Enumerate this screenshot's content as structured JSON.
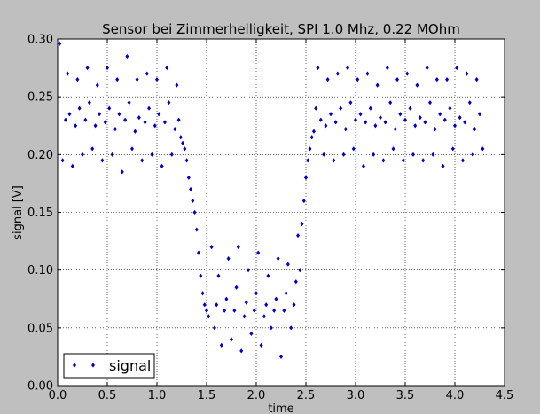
{
  "chart_data": {
    "type": "scatter",
    "title": "Sensor bei Zimmerhelligkeit, SPI 1.0 Mhz, 0.22 MOhm",
    "xlabel": "time",
    "ylabel": "signal [V]",
    "xlim": [
      0.0,
      4.5
    ],
    "ylim": [
      0.0,
      0.3
    ],
    "x_ticks": [
      "0.0",
      "0.5",
      "1.0",
      "1.5",
      "2.0",
      "2.5",
      "3.0",
      "3.5",
      "4.0",
      "4.5"
    ],
    "y_ticks": [
      "0.00",
      "0.05",
      "0.10",
      "0.15",
      "0.20",
      "0.25",
      "0.30"
    ],
    "grid": true,
    "legend_position": "lower-left",
    "series": [
      {
        "name": "signal",
        "color": "#0000cc",
        "marker": "diamond",
        "x": [
          0.02,
          0.05,
          0.08,
          0.1,
          0.12,
          0.15,
          0.18,
          0.2,
          0.22,
          0.25,
          0.28,
          0.3,
          0.32,
          0.35,
          0.38,
          0.4,
          0.42,
          0.45,
          0.48,
          0.5,
          0.52,
          0.55,
          0.58,
          0.6,
          0.62,
          0.65,
          0.68,
          0.7,
          0.72,
          0.75,
          0.78,
          0.8,
          0.82,
          0.85,
          0.88,
          0.9,
          0.92,
          0.95,
          0.98,
          1.0,
          1.02,
          1.05,
          1.08,
          1.1,
          1.12,
          1.15,
          1.18,
          1.2,
          1.22,
          1.24,
          1.26,
          1.28,
          1.3,
          1.32,
          1.34,
          1.36,
          1.38,
          1.4,
          1.42,
          1.44,
          1.46,
          1.48,
          1.5,
          1.52,
          1.55,
          1.58,
          1.6,
          1.62,
          1.65,
          1.68,
          1.7,
          1.72,
          1.75,
          1.78,
          1.8,
          1.82,
          1.85,
          1.88,
          1.9,
          1.92,
          1.95,
          1.98,
          2.0,
          2.02,
          2.05,
          2.08,
          2.1,
          2.12,
          2.15,
          2.18,
          2.2,
          2.22,
          2.25,
          2.28,
          2.3,
          2.32,
          2.35,
          2.38,
          2.4,
          2.42,
          2.44,
          2.46,
          2.48,
          2.5,
          2.52,
          2.54,
          2.56,
          2.58,
          2.6,
          2.62,
          2.65,
          2.68,
          2.7,
          2.72,
          2.75,
          2.78,
          2.8,
          2.82,
          2.85,
          2.88,
          2.9,
          2.92,
          2.95,
          2.98,
          3.0,
          3.02,
          3.05,
          3.08,
          3.1,
          3.12,
          3.15,
          3.18,
          3.2,
          3.22,
          3.25,
          3.28,
          3.3,
          3.32,
          3.35,
          3.38,
          3.4,
          3.42,
          3.45,
          3.48,
          3.5,
          3.52,
          3.55,
          3.58,
          3.6,
          3.62,
          3.65,
          3.68,
          3.7,
          3.72,
          3.75,
          3.78,
          3.8,
          3.82,
          3.85,
          3.88,
          3.9,
          3.92,
          3.95,
          3.98,
          4.0,
          4.02,
          4.05,
          4.08,
          4.1,
          4.12,
          4.15,
          4.18,
          4.2,
          4.22,
          4.25,
          4.28
        ],
        "y": [
          0.296,
          0.195,
          0.23,
          0.27,
          0.235,
          0.19,
          0.225,
          0.265,
          0.24,
          0.2,
          0.23,
          0.275,
          0.245,
          0.205,
          0.225,
          0.26,
          0.235,
          0.195,
          0.228,
          0.275,
          0.24,
          0.2,
          0.222,
          0.265,
          0.235,
          0.185,
          0.23,
          0.285,
          0.245,
          0.205,
          0.22,
          0.265,
          0.232,
          0.195,
          0.228,
          0.27,
          0.24,
          0.2,
          0.225,
          0.265,
          0.235,
          0.19,
          0.228,
          0.275,
          0.245,
          0.2,
          0.222,
          0.26,
          0.23,
          0.215,
          0.21,
          0.205,
          0.195,
          0.18,
          0.17,
          0.16,
          0.15,
          0.135,
          0.115,
          0.095,
          0.08,
          0.07,
          0.065,
          0.06,
          0.12,
          0.05,
          0.07,
          0.095,
          0.035,
          0.065,
          0.075,
          0.11,
          0.04,
          0.065,
          0.085,
          0.12,
          0.03,
          0.06,
          0.072,
          0.1,
          0.045,
          0.065,
          0.08,
          0.115,
          0.035,
          0.06,
          0.07,
          0.095,
          0.05,
          0.065,
          0.075,
          0.11,
          0.025,
          0.065,
          0.08,
          0.105,
          0.05,
          0.07,
          0.09,
          0.13,
          0.1,
          0.14,
          0.16,
          0.18,
          0.195,
          0.205,
          0.215,
          0.22,
          0.24,
          0.275,
          0.23,
          0.2,
          0.225,
          0.265,
          0.235,
          0.195,
          0.228,
          0.27,
          0.24,
          0.2,
          0.222,
          0.275,
          0.245,
          0.205,
          0.23,
          0.265,
          0.235,
          0.19,
          0.228,
          0.27,
          0.24,
          0.2,
          0.225,
          0.26,
          0.232,
          0.195,
          0.228,
          0.275,
          0.245,
          0.205,
          0.222,
          0.265,
          0.235,
          0.195,
          0.23,
          0.27,
          0.24,
          0.2,
          0.225,
          0.26,
          0.232,
          0.195,
          0.228,
          0.275,
          0.245,
          0.2,
          0.222,
          0.265,
          0.235,
          0.19,
          0.23,
          0.265,
          0.24,
          0.205,
          0.225,
          0.275,
          0.232,
          0.195,
          0.228,
          0.27,
          0.245,
          0.2,
          0.222,
          0.265,
          0.235,
          0.205
        ]
      }
    ]
  }
}
